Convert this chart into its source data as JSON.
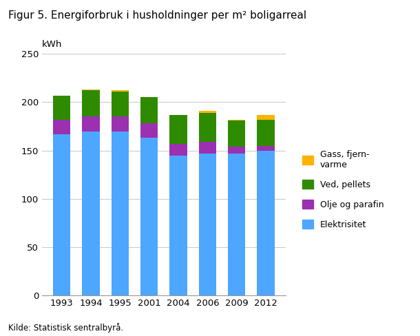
{
  "title": "Figur 5. Energiforbruk i husholdninger per m² boligarreal",
  "ylabel": "kWh",
  "years": [
    "1993",
    "1994",
    "1995",
    "2001",
    "2004",
    "2006",
    "2009",
    "2012"
  ],
  "elektrisitet": [
    167,
    170,
    170,
    163,
    145,
    147,
    147,
    150
  ],
  "olje_parafin": [
    15,
    15,
    15,
    15,
    12,
    12,
    7,
    5
  ],
  "ved_pellets": [
    25,
    27,
    26,
    27,
    30,
    30,
    27,
    27
  ],
  "gass_fjernvarme": [
    0,
    1,
    1,
    0,
    0,
    2,
    1,
    5
  ],
  "color_elektrisitet": "#4DA6FF",
  "color_olje_parafin": "#9B30B0",
  "color_ved_pellets": "#2E8B00",
  "color_gass_fjernvarme": "#FFB300",
  "ylim": [
    0,
    250
  ],
  "yticks": [
    0,
    50,
    100,
    150,
    200,
    250
  ],
  "source": "Kilde: Statistisk sentralbyrå.",
  "background_color": "#ffffff",
  "grid_color": "#cccccc"
}
